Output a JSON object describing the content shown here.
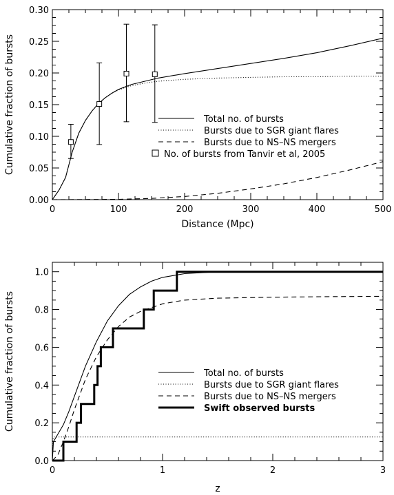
{
  "chart_data": [
    {
      "type": "line",
      "xlabel": "Distance (Mpc)",
      "ylabel": "Cumulative fraction of bursts",
      "xlim": [
        0,
        500
      ],
      "ylim": [
        0,
        0.3
      ],
      "xticks": [
        0,
        100,
        200,
        300,
        400,
        500
      ],
      "xtick_labels": [
        "0",
        "100",
        "200",
        "300",
        "400",
        "500"
      ],
      "yticks": [
        0.0,
        0.05,
        0.1,
        0.15,
        0.2,
        0.25,
        0.3
      ],
      "ytick_labels": [
        "0.00",
        "0.05",
        "0.10",
        "0.15",
        "0.20",
        "0.25",
        "0.30"
      ],
      "legend_placement": "right",
      "legend": [
        "Total no. of bursts",
        "Bursts due to SGR giant flares",
        "Bursts due to NS–NS mergers",
        "No. of bursts from Tanvir et al, 2005"
      ],
      "series": [
        {
          "name": "Total no. of bursts",
          "style": "solid",
          "x": [
            0,
            10,
            20,
            30,
            40,
            50,
            60,
            70,
            80,
            90,
            100,
            110,
            120,
            140,
            160,
            200,
            250,
            300,
            350,
            400,
            450,
            500
          ],
          "y": [
            0,
            0.015,
            0.035,
            0.075,
            0.105,
            0.125,
            0.14,
            0.152,
            0.161,
            0.168,
            0.174,
            0.178,
            0.182,
            0.187,
            0.192,
            0.199,
            0.207,
            0.215,
            0.223,
            0.232,
            0.243,
            0.255
          ]
        },
        {
          "name": "Bursts due to SGR giant flares",
          "style": "dotted",
          "x": [
            0,
            10,
            20,
            30,
            40,
            50,
            60,
            70,
            80,
            90,
            100,
            110,
            120,
            140,
            160,
            200,
            250,
            300,
            350,
            400,
            450,
            500
          ],
          "y": [
            0,
            0.015,
            0.035,
            0.075,
            0.105,
            0.125,
            0.14,
            0.152,
            0.161,
            0.168,
            0.173,
            0.177,
            0.18,
            0.184,
            0.187,
            0.19,
            0.192,
            0.193,
            0.194,
            0.194,
            0.195,
            0.195
          ]
        },
        {
          "name": "Bursts due to NS–NS mergers",
          "style": "dashed",
          "x": [
            0,
            100,
            150,
            200,
            250,
            300,
            350,
            400,
            450,
            500
          ],
          "y": [
            0,
            0.0005,
            0.002,
            0.005,
            0.01,
            0.017,
            0.025,
            0.035,
            0.047,
            0.06
          ]
        }
      ],
      "points": {
        "name": "No. of bursts from Tanvir et al, 2005",
        "x": [
          28,
          71,
          112,
          155
        ],
        "y": [
          0.091,
          0.151,
          0.199,
          0.198
        ],
        "err_low": [
          0.065,
          0.087,
          0.123,
          0.122
        ],
        "err_high": [
          0.119,
          0.216,
          0.277,
          0.276
        ]
      }
    },
    {
      "type": "line",
      "xlabel": "z",
      "ylabel": "Cumulative fraction of bursts",
      "xlim": [
        0,
        3
      ],
      "ylim": [
        0,
        1.05
      ],
      "xticks": [
        0,
        1,
        2,
        3
      ],
      "xtick_labels": [
        "0",
        "1",
        "2",
        "3"
      ],
      "yticks": [
        0,
        0.2,
        0.4,
        0.6,
        0.8,
        1.0
      ],
      "ytick_labels": [
        "0.0",
        "0.2",
        "0.4",
        "0.6",
        "0.8",
        "1.0"
      ],
      "legend_placement": "right",
      "legend": [
        "Total no. of bursts",
        "Bursts due to SGR giant flares",
        "Bursts due to NS–NS mergers",
        "Swift observed bursts"
      ],
      "series": [
        {
          "name": "Total no. of bursts",
          "style": "solid",
          "x": [
            0,
            0.01,
            0.05,
            0.1,
            0.15,
            0.2,
            0.25,
            0.3,
            0.4,
            0.5,
            0.6,
            0.7,
            0.8,
            0.9,
            1.0,
            1.2,
            1.5,
            2.0,
            2.5,
            3.0
          ],
          "y": [
            0,
            0.1,
            0.14,
            0.19,
            0.26,
            0.34,
            0.42,
            0.5,
            0.63,
            0.74,
            0.82,
            0.88,
            0.92,
            0.95,
            0.97,
            0.99,
            1.0,
            1.0,
            1.0,
            1.0
          ]
        },
        {
          "name": "Bursts due to SGR giant flares",
          "style": "dotted",
          "x": [
            0,
            0.003,
            0.01,
            0.05,
            0.5,
            1.0,
            2.0,
            3.0
          ],
          "y": [
            0,
            0.1,
            0.125,
            0.125,
            0.125,
            0.125,
            0.125,
            0.125
          ]
        },
        {
          "name": "Bursts due to NS–NS mergers",
          "style": "dashed",
          "x": [
            0,
            0.05,
            0.1,
            0.15,
            0.2,
            0.3,
            0.4,
            0.5,
            0.6,
            0.7,
            0.8,
            1.0,
            1.2,
            1.5,
            2.0,
            2.5,
            3.0
          ],
          "y": [
            0,
            0.03,
            0.1,
            0.18,
            0.27,
            0.43,
            0.55,
            0.64,
            0.71,
            0.76,
            0.79,
            0.83,
            0.85,
            0.86,
            0.865,
            0.868,
            0.87
          ]
        },
        {
          "name": "Swift observed bursts",
          "style": "step-thick",
          "x": [
            0,
            0.1,
            0.1,
            0.22,
            0.22,
            0.26,
            0.26,
            0.38,
            0.38,
            0.41,
            0.41,
            0.44,
            0.44,
            0.55,
            0.55,
            0.83,
            0.83,
            0.92,
            0.92,
            1.13,
            1.13,
            3.0
          ],
          "y": [
            0,
            0,
            0.1,
            0.1,
            0.2,
            0.2,
            0.3,
            0.3,
            0.4,
            0.4,
            0.5,
            0.5,
            0.6,
            0.6,
            0.7,
            0.7,
            0.8,
            0.8,
            0.9,
            0.9,
            1.0,
            1.0
          ]
        }
      ]
    }
  ]
}
